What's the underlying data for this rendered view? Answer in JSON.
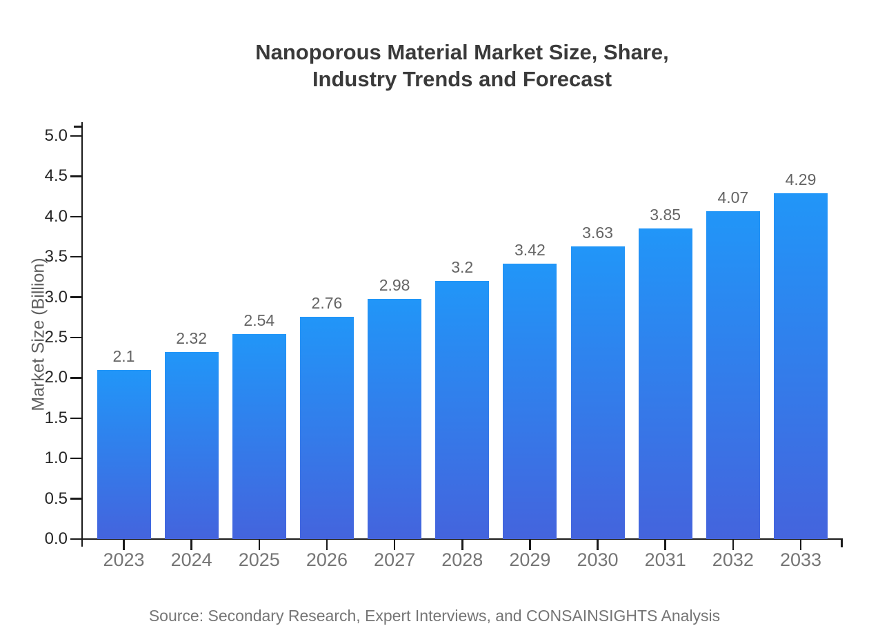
{
  "chart_data": {
    "type": "bar",
    "title": "Nanoporous Material Market Size, Share, Industry Trends and Forecast",
    "title_lines": [
      "Nanoporous Material Market Size, Share,",
      "Industry Trends and Forecast"
    ],
    "ylabel": "Market Size (Billion)",
    "xlabel": "",
    "categories": [
      "2023",
      "2024",
      "2025",
      "2026",
      "2027",
      "2028",
      "2029",
      "2030",
      "2031",
      "2032",
      "2033"
    ],
    "values": [
      2.1,
      2.32,
      2.54,
      2.76,
      2.98,
      3.2,
      3.42,
      3.63,
      3.85,
      4.07,
      4.29
    ],
    "value_labels": [
      "2.1",
      "2.32",
      "2.54",
      "2.76",
      "2.98",
      "3.2",
      "3.42",
      "3.63",
      "3.85",
      "4.07",
      "4.29"
    ],
    "ylim": [
      0,
      5
    ],
    "ytick_step": 0.5,
    "ytick_labels": [
      "0.0",
      "0.5",
      "1.0",
      "1.5",
      "2.0",
      "2.5",
      "3.0",
      "3.5",
      "4.0",
      "4.5",
      "5.0"
    ],
    "grid": false,
    "legend": null,
    "source_note": "Source: Secondary Research, Expert Interviews, and CONSAINSIGHTS Analysis",
    "colors": {
      "bar_gradient_top": "#2196F8",
      "bar_gradient_bottom": "#4464DD",
      "axis": "#1a1a1a",
      "y_tick_label": "#262626",
      "x_tick_label": "#757575",
      "value_label": "#646464",
      "title": "#3a3a3a",
      "background": "#ffffff"
    }
  }
}
